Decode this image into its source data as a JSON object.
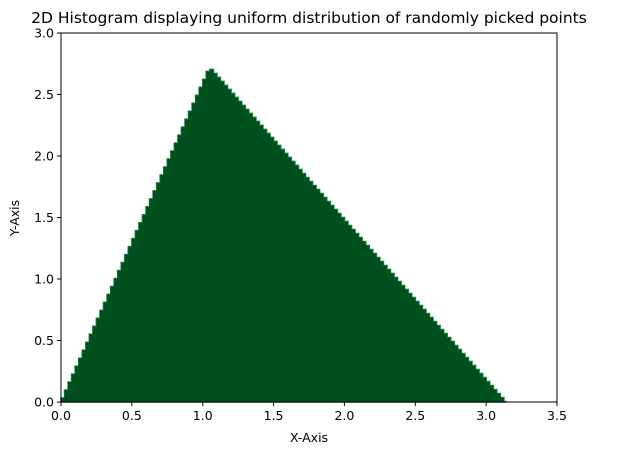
{
  "chart_data": {
    "type": "heatmap",
    "title": "2D Histogram displaying uniform distribution of randomly picked points",
    "xlabel": "X-Axis",
    "ylabel": "Y-Axis",
    "xlim": [
      0.0,
      3.5
    ],
    "ylim": [
      0.0,
      3.0
    ],
    "xticks": [
      "0.0",
      "0.5",
      "1.0",
      "1.5",
      "2.0",
      "2.5",
      "3.0",
      "3.5"
    ],
    "yticks": [
      "0.0",
      "0.5",
      "1.0",
      "1.5",
      "2.0",
      "2.5",
      "3.0"
    ],
    "xticks_values": [
      0.0,
      0.5,
      1.0,
      1.5,
      2.0,
      2.5,
      3.0,
      3.5
    ],
    "yticks_values": [
      0.0,
      0.5,
      1.0,
      1.5,
      2.0,
      2.5,
      3.0
    ],
    "grid": false,
    "colormap": "Greens",
    "fill_color": "#00501f",
    "edge_color": "#1a8a3e",
    "region_vertices": [
      [
        0.0,
        0.0
      ],
      [
        1.05,
        2.72
      ],
      [
        3.14,
        0.0
      ]
    ]
  }
}
